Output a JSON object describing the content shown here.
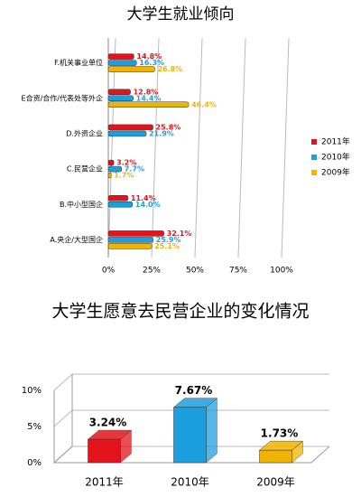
{
  "chart_data": [
    {
      "type": "bar",
      "orientation": "horizontal",
      "title": "大学生就业倾向",
      "categories": [
        "F.机关事业单位",
        "E合资/合作/代表处等外企",
        "D.外资企业",
        "C.民营企业",
        "B.中小型国企",
        "A.央企/大型国企"
      ],
      "series": [
        {
          "name": "2011年",
          "color": "#e3141b",
          "values": [
            14.8,
            12.8,
            25.8,
            3.2,
            11.4,
            32.1
          ],
          "value_labels": [
            "14.8%",
            "12.8%",
            "25.8%",
            "3.2%",
            "11.4%",
            "32.1%"
          ]
        },
        {
          "name": "2010年",
          "color": "#1b9fe0",
          "values": [
            16.3,
            14.4,
            21.9,
            7.7,
            14.0,
            25.9
          ],
          "value_labels": [
            "16.3%",
            "14.4%",
            "21.9%",
            "7.7%",
            "14.0%",
            "25.9%"
          ]
        },
        {
          "name": "2009年",
          "color": "#f0b400",
          "values": [
            26.8,
            46.4,
            null,
            1.7,
            null,
            25.1
          ],
          "value_labels": [
            "26.8%",
            "46.4%",
            null,
            "1.7%",
            null,
            "25.1%"
          ]
        }
      ],
      "xlim": [
        0,
        100
      ],
      "xticks": [
        {
          "value": 0,
          "label": "0%"
        },
        {
          "value": 25,
          "label": "25%"
        },
        {
          "value": 50,
          "label": "50%"
        },
        {
          "value": 75,
          "label": "75%"
        },
        {
          "value": 100,
          "label": "100%"
        }
      ],
      "grid": true,
      "legend": "right"
    },
    {
      "type": "bar3d",
      "title": "大学生愿意去民营企业的变化情况",
      "categories": [
        "2011年",
        "2010年",
        "2009年"
      ],
      "values": [
        3.24,
        7.67,
        1.73
      ],
      "value_labels": [
        "3.24%",
        "7.67%",
        "1.73%"
      ],
      "colors": [
        "#e3141b",
        "#1b9fe0",
        "#f0b400"
      ],
      "ylim": [
        0,
        10
      ],
      "yticks": [
        {
          "value": 0,
          "label": "0%"
        },
        {
          "value": 5,
          "label": "5%"
        },
        {
          "value": 10,
          "label": "10%"
        }
      ],
      "grid": true
    }
  ]
}
